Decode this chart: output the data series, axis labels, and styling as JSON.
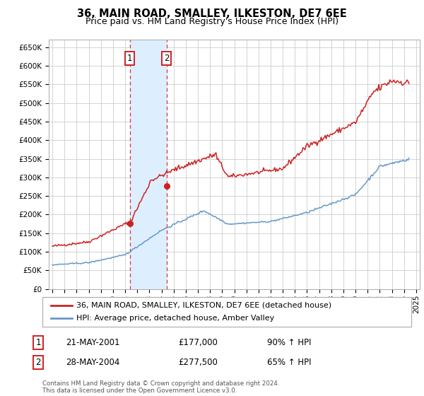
{
  "title": "36, MAIN ROAD, SMALLEY, ILKESTON, DE7 6EE",
  "subtitle": "Price paid vs. HM Land Registry's House Price Index (HPI)",
  "legend_line1": "36, MAIN ROAD, SMALLEY, ILKESTON, DE7 6EE (detached house)",
  "legend_line2": "HPI: Average price, detached house, Amber Valley",
  "transaction1_label": "1",
  "transaction1_date": "21-MAY-2001",
  "transaction1_price": "£177,000",
  "transaction1_hpi": "90% ↑ HPI",
  "transaction1_year": 2001.38,
  "transaction1_value": 177000,
  "transaction2_label": "2",
  "transaction2_date": "28-MAY-2004",
  "transaction2_price": "£277,500",
  "transaction2_hpi": "65% ↑ HPI",
  "transaction2_year": 2004.41,
  "transaction2_value": 277500,
  "highlight_color": "#ddeeff",
  "vline_color": "#dd3333",
  "red_line_color": "#cc2222",
  "blue_line_color": "#6699cc",
  "copyright_text": "Contains HM Land Registry data © Crown copyright and database right 2024.\nThis data is licensed under the Open Government Licence v3.0.",
  "ylim": [
    0,
    670000
  ],
  "yticks": [
    0,
    50000,
    100000,
    150000,
    200000,
    250000,
    300000,
    350000,
    400000,
    450000,
    500000,
    550000,
    600000,
    650000
  ],
  "ytick_labels": [
    "£0",
    "£50K",
    "£100K",
    "£150K",
    "£200K",
    "£250K",
    "£300K",
    "£350K",
    "£400K",
    "£450K",
    "£500K",
    "£550K",
    "£600K",
    "£650K"
  ],
  "xtick_years": [
    1995,
    1996,
    1997,
    1998,
    1999,
    2000,
    2001,
    2002,
    2003,
    2004,
    2005,
    2006,
    2007,
    2008,
    2009,
    2010,
    2011,
    2012,
    2013,
    2014,
    2015,
    2016,
    2017,
    2018,
    2019,
    2020,
    2021,
    2022,
    2023,
    2024,
    2025
  ]
}
